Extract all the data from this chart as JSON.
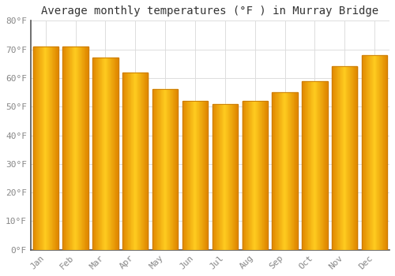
{
  "title": "Average monthly temperatures (°F ) in Murray Bridge",
  "months": [
    "Jan",
    "Feb",
    "Mar",
    "Apr",
    "May",
    "Jun",
    "Jul",
    "Aug",
    "Sep",
    "Oct",
    "Nov",
    "Dec"
  ],
  "values": [
    71,
    71,
    67,
    62,
    56,
    52,
    51,
    52,
    55,
    59,
    64,
    68
  ],
  "bar_color_center": "#FFB800",
  "bar_color_edge": "#F08000",
  "bar_edge_line_color": "#C87800",
  "ylim": [
    0,
    80
  ],
  "yticks": [
    0,
    10,
    20,
    30,
    40,
    50,
    60,
    70,
    80
  ],
  "ytick_labels": [
    "0°F",
    "10°F",
    "20°F",
    "30°F",
    "40°F",
    "50°F",
    "60°F",
    "70°F",
    "80°F"
  ],
  "grid_color": "#DDDDDD",
  "background_color": "#FFFFFF",
  "title_fontsize": 10,
  "tick_fontsize": 8,
  "bar_width": 0.85
}
